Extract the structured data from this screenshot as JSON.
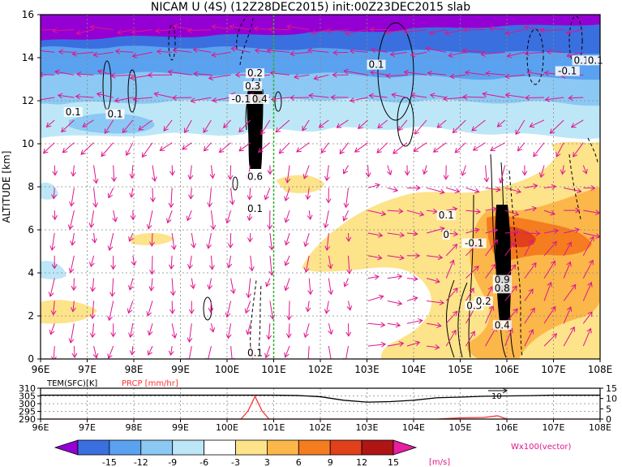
{
  "title": "NICAM  U  (4S)  (12Z28DEC2015)  init:00Z23DEC2015  slab",
  "chart_data": [
    {
      "type": "heatmap",
      "title": "NICAM  U  (4S)  (12Z28DEC2015)  init:00Z23DEC2015  slab",
      "xlabel": "",
      "ylabel": "ALTITUDE [km]",
      "x_ticks": [
        "96E",
        "97E",
        "98E",
        "99E",
        "100E",
        "101E",
        "102E",
        "103E",
        "104E",
        "105E",
        "106E",
        "107E",
        "108E"
      ],
      "y_ticks": [
        "0",
        "2",
        "4",
        "6",
        "8",
        "10",
        "12",
        "14",
        "16"
      ],
      "xlim": [
        96,
        108
      ],
      "ylim": [
        0,
        16
      ],
      "grid": true,
      "marker_line_lon": 101.0,
      "contour_labels": [
        {
          "text": "0.1",
          "lon": 96.7,
          "z": 11.4
        },
        {
          "text": "0.1",
          "lon": 97.6,
          "z": 11.3
        },
        {
          "text": "0.2",
          "lon": 100.6,
          "z": 13.2
        },
        {
          "text": "0.3",
          "lon": 100.55,
          "z": 12.6
        },
        {
          "text": "-0.1",
          "lon": 100.3,
          "z": 12.0
        },
        {
          "text": "0.4",
          "lon": 100.7,
          "z": 12.0
        },
        {
          "text": "0.6",
          "lon": 100.6,
          "z": 8.4
        },
        {
          "text": "0.1",
          "lon": 100.6,
          "z": 6.9
        },
        {
          "text": "0.1",
          "lon": 103.2,
          "z": 13.6
        },
        {
          "text": "-0.1",
          "lon": 107.3,
          "z": 13.3
        },
        {
          "text": "0.1",
          "lon": 107.6,
          "z": 13.8
        },
        {
          "text": "0.1",
          "lon": 107.9,
          "z": 13.8
        },
        {
          "text": "0.1",
          "lon": 104.7,
          "z": 6.6
        },
        {
          "text": "0",
          "lon": 104.7,
          "z": 5.7
        },
        {
          "text": "-0.1",
          "lon": 105.3,
          "z": 5.3
        },
        {
          "text": "0.9",
          "lon": 105.9,
          "z": 3.6
        },
        {
          "text": "0.8",
          "lon": 105.9,
          "z": 3.2
        },
        {
          "text": "0.3",
          "lon": 105.3,
          "z": 2.4
        },
        {
          "text": "0.2",
          "lon": 105.5,
          "z": 2.6
        },
        {
          "text": "0.4",
          "lon": 105.9,
          "z": 1.5
        },
        {
          "text": "0.1",
          "lon": 100.6,
          "z": 0.2
        }
      ]
    },
    {
      "type": "line",
      "xlim": [
        96,
        108
      ],
      "x_ticks": [
        "96E",
        "97E",
        "98E",
        "99E",
        "100E",
        "101E",
        "102E",
        "103E",
        "104E",
        "105E",
        "106E",
        "107E",
        "108E"
      ],
      "left_axis_title": "TEM(SFC)[K]",
      "right_axis_title": "PRCP [mm/hr]",
      "left_ticks": [
        "310",
        "305",
        "300",
        "295",
        "290"
      ],
      "right_ticks": [
        "15",
        "10",
        "5",
        "0"
      ],
      "annotation": "10",
      "series": [
        {
          "name": "TEM(SFC)[K]",
          "color": "#000000",
          "x": [
            96,
            97,
            98,
            99,
            100,
            100.5,
            101,
            101.5,
            102,
            102.5,
            103,
            103.5,
            104,
            104.5,
            105,
            105.5,
            106,
            106.5,
            107,
            108
          ],
          "y": [
            305.5,
            305.5,
            305.5,
            305.5,
            305.5,
            305.5,
            305.5,
            305.3,
            304.5,
            302.2,
            301.0,
            301.3,
            302.2,
            303.8,
            304.2,
            304.8,
            305.0,
            305.2,
            305.5,
            305.5
          ]
        },
        {
          "name": "PRCP [mm/hr]",
          "color": "#ff3030",
          "x": [
            96,
            100.3,
            100.45,
            100.6,
            100.75,
            100.9,
            104.5,
            105.0,
            105.5,
            105.8,
            106.0,
            108
          ],
          "y": [
            0,
            0,
            4,
            11,
            4,
            0,
            0,
            0.6,
            0.8,
            1.6,
            0,
            0
          ]
        }
      ]
    }
  ],
  "colorbar": {
    "ticks": [
      "-15",
      "-12",
      "-9",
      "-6",
      "-3",
      "3",
      "6",
      "9",
      "12",
      "15"
    ],
    "unit": "[m/s]",
    "colors": [
      "#9400d3",
      "#3a6fe0",
      "#5aa2f0",
      "#8cc8f4",
      "#bde7f7",
      "#ffffff",
      "#fde38a",
      "#fbb74a",
      "#f57d1f",
      "#e0401a",
      "#b01515",
      "#e81ea0"
    ]
  },
  "vector_label": "Wx100(vector)",
  "colors": {
    "vector": "#e0158c",
    "marker_line": "#30b030",
    "prcp": "#ff3030"
  }
}
